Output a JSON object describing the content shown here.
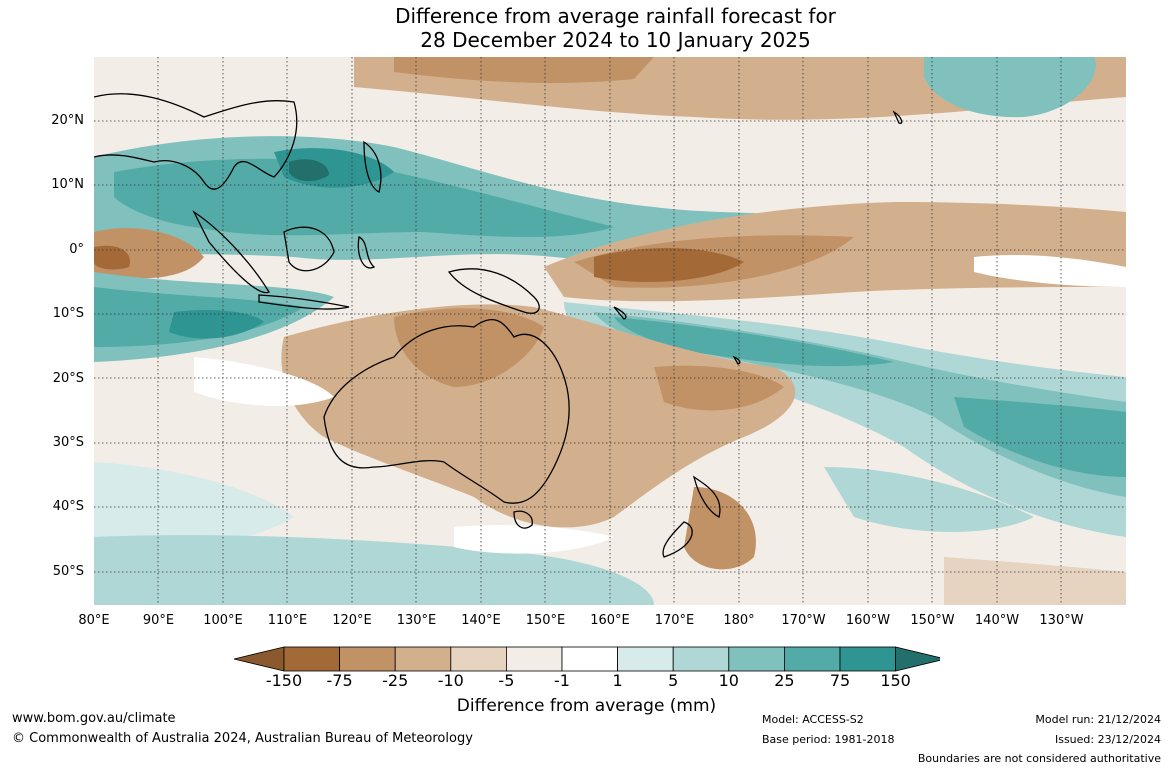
{
  "title_line1": "Difference from average rainfall forecast for",
  "title_line2": "28 December 2024 to 10 January 2025",
  "lat_labels": [
    "20°N",
    "10°N",
    "0°",
    "10°S",
    "20°S",
    "30°S",
    "40°S",
    "50°S"
  ],
  "lon_labels": [
    "80°E",
    "90°E",
    "100°E",
    "110°E",
    "120°E",
    "130°E",
    "140°E",
    "150°E",
    "160°E",
    "170°E",
    "180°",
    "170°W",
    "160°W",
    "150°W",
    "140°W",
    "130°W"
  ],
  "colorbar": {
    "ticks": [
      "-150",
      "-75",
      "-25",
      "-10",
      "-5",
      "-1",
      "1",
      "5",
      "10",
      "25",
      "75",
      "150"
    ],
    "colors": [
      "#a36a37",
      "#c09266",
      "#d3b08d",
      "#e6d3c0",
      "#f2ede7",
      "#ffffff",
      "#d6ebea",
      "#aed7d6",
      "#80c0bd",
      "#52aba7",
      "#2e9592"
    ],
    "extend_low_color": "#8a5a2e",
    "extend_high_color": "#226f6c",
    "label": "Difference from average (mm)"
  },
  "footer": {
    "website": "www.bom.gov.au/climate",
    "copyright": "© Commonwealth of Australia 2024, Australian Bureau of Meteorology",
    "model": "Model: ACCESS-S2",
    "base_period": "Base period: 1981-2018",
    "model_run": "Model run: 21/12/2024",
    "issued": "Issued: 23/12/2024",
    "boundaries_note": "Boundaries are not considered authoritative"
  }
}
